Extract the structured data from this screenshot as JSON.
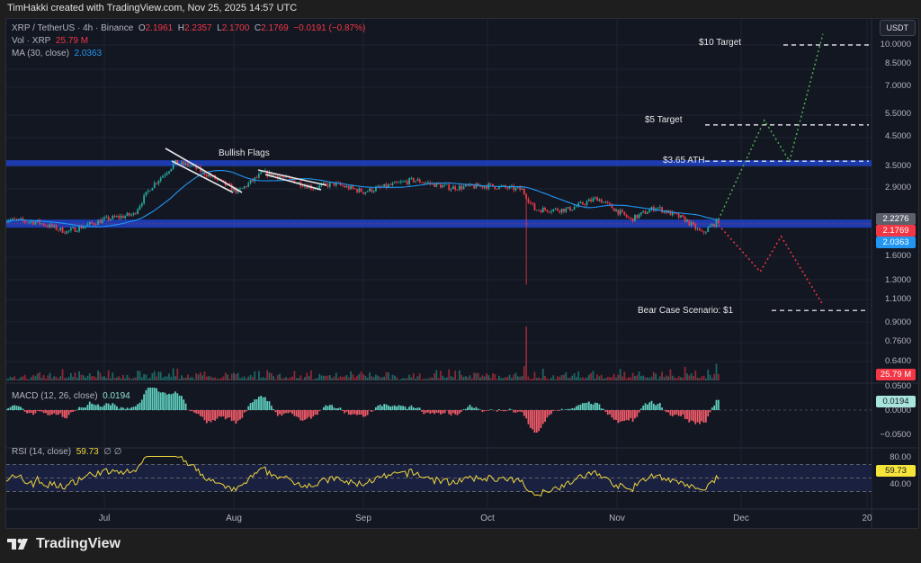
{
  "header": {
    "credit": "TimHakki created with TradingView.com, Nov 25, 2025 14:57 UTC"
  },
  "legend": {
    "symbol": "XRP / TetherUS · 4h · Binance",
    "open_label": "O",
    "open": "2.1961",
    "high_label": "H",
    "high": "2.2357",
    "low_label": "L",
    "low": "2.1700",
    "close_label": "C",
    "close": "2.1769",
    "change": "−0.0191 (−0.87%)",
    "vol_label": "Vol · XRP",
    "vol": "25.79 M",
    "ma_label": "MA (30, close)",
    "ma": "2.0363",
    "macd_label": "MACD (12, 26, close)",
    "macd": "0.0194",
    "rsi_label": "RSI (14, close)",
    "rsi": "59.73",
    "rsi_extra": "∅ ∅"
  },
  "annotations": {
    "bullish_flags": "Bullish Flags",
    "target_10": "$10 Target",
    "target_5": "$5 Target",
    "ath": "$3.65 ATH",
    "bear": "Bear Case Scenario: $1"
  },
  "price_axis": {
    "currency": "USDT",
    "ticks": [
      "10.0000",
      "8.5000",
      "7.0000",
      "5.5000",
      "4.5000",
      "3.5000",
      "2.9000",
      "1.6000",
      "1.3000",
      "1.1000",
      "0.9000",
      "0.7600",
      "0.6400"
    ],
    "tags": {
      "high": "2.2276",
      "last": "2.1769",
      "ma": "2.0363",
      "vol": "25.79 M",
      "macd": "0.0194",
      "rsi": "59.73"
    }
  },
  "macd_axis": {
    "ticks": [
      "0.0500",
      "0.0000",
      "−0.0500"
    ]
  },
  "rsi_axis": {
    "ticks": [
      "80.00",
      "40.00"
    ]
  },
  "time_axis": {
    "labels": [
      "Jul",
      "Aug",
      "Sep",
      "Oct",
      "Nov",
      "Dec",
      "20"
    ]
  },
  "brand": "TradingView",
  "colors": {
    "up": "#26a69a",
    "down": "#f23645",
    "ma": "#2196f3",
    "band": "#1e3fbf",
    "rsi": "#f0d73d",
    "bull_path": "#4caf50",
    "bear_path": "#f23645"
  },
  "chart_data": {
    "type": "candlestick",
    "symbol": "XRP / TetherUS",
    "interval": "4h",
    "y_scale": "log",
    "ylim": [
      0.6,
      11
    ],
    "series": [
      {
        "dates": [
          "2025-06-07",
          "2025-06-15",
          "2025-06-22",
          "2025-07-01",
          "2025-07-08",
          "2025-07-12",
          "2025-07-18",
          "2025-07-22",
          "2025-07-28",
          "2025-08-02",
          "2025-08-08",
          "2025-08-12",
          "2025-08-20",
          "2025-08-25",
          "2025-09-01",
          "2025-09-13",
          "2025-09-22",
          "2025-10-01",
          "2025-10-09",
          "2025-10-12",
          "2025-10-20",
          "2025-10-27",
          "2025-11-04",
          "2025-11-10",
          "2025-11-17",
          "2025-11-21",
          "2025-11-25"
        ],
        "close": [
          2.2,
          2.15,
          1.98,
          2.2,
          2.3,
          2.9,
          3.6,
          3.5,
          3.1,
          2.8,
          3.3,
          3.2,
          2.9,
          3.0,
          2.8,
          3.1,
          2.9,
          2.95,
          2.85,
          2.4,
          2.4,
          2.65,
          2.2,
          2.45,
          2.2,
          1.95,
          2.18
        ]
      }
    ],
    "flash_wick_low": {
      "date": "2025-10-10",
      "price": 1.25
    },
    "bands": [
      {
        "name": "$3.65 ATH",
        "from": 3.5,
        "to": 3.68
      },
      {
        "from": 2.05,
        "to": 2.2
      }
    ],
    "targets": [
      10,
      5,
      3.65,
      1
    ],
    "projections": {
      "bull": [
        [
          "2025-11-25",
          2.2
        ],
        [
          "2025-12-06",
          5.2
        ],
        [
          "2025-12-12",
          3.65
        ],
        [
          "2025-12-20",
          11
        ]
      ],
      "bear": [
        [
          "2025-11-25",
          2.1
        ],
        [
          "2025-12-05",
          1.4
        ],
        [
          "2025-12-10",
          1.9
        ],
        [
          "2025-12-20",
          1.05
        ]
      ]
    },
    "indicators": {
      "ma30": 2.0363,
      "volume": "25.79M",
      "macd": 0.0194,
      "rsi": 59.73,
      "rsi_levels": [
        70,
        50,
        30
      ]
    },
    "time_labels": [
      "Jul",
      "Aug",
      "Sep",
      "Oct",
      "Nov",
      "Dec",
      "20"
    ]
  }
}
